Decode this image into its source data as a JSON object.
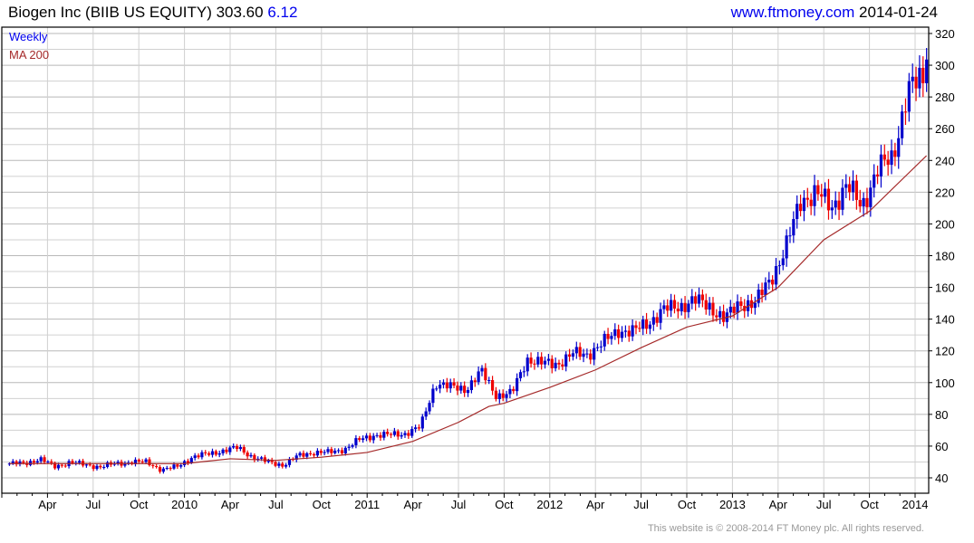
{
  "header": {
    "name": "Biogen Inc (BIIB US EQUITY)",
    "price": "303.60",
    "change": "6.12",
    "site": "www.ftmoney.com",
    "date": "2014-01-24"
  },
  "footer": "This website is © 2008-2014 FT Money plc. All rights reserved.",
  "colors": {
    "up": "#0000cc",
    "down": "#ee0000",
    "ma": "#a52a2a",
    "grid": "#d0d0d0",
    "grid_major": "#b8b8b8"
  },
  "chart_data": {
    "type": "candlestick",
    "title": "Biogen Inc (BIIB US EQUITY)",
    "frequency": "Weekly",
    "legend": [
      {
        "label": "Weekly",
        "color": "#0000ee"
      },
      {
        "label": "MA 200",
        "color": "#a52a2a"
      }
    ],
    "legend_placement": "top-left",
    "ylim": [
      35,
      322
    ],
    "yticks": [
      40,
      60,
      80,
      100,
      120,
      140,
      160,
      180,
      200,
      220,
      240,
      260,
      280,
      300,
      320
    ],
    "xticks": [
      {
        "label": "Apr",
        "t": 3
      },
      {
        "label": "Jul",
        "t": 6
      },
      {
        "label": "Oct",
        "t": 9
      },
      {
        "label": "2010",
        "t": 12
      },
      {
        "label": "Apr",
        "t": 15
      },
      {
        "label": "Jul",
        "t": 18
      },
      {
        "label": "Oct",
        "t": 21
      },
      {
        "label": "2011",
        "t": 24
      },
      {
        "label": "Apr",
        "t": 27
      },
      {
        "label": "Jul",
        "t": 30
      },
      {
        "label": "Oct",
        "t": 33
      },
      {
        "label": "2012",
        "t": 36
      },
      {
        "label": "Apr",
        "t": 39
      },
      {
        "label": "Jul",
        "t": 42
      },
      {
        "label": "Oct",
        "t": 45
      },
      {
        "label": "2013",
        "t": 48
      },
      {
        "label": "Apr",
        "t": 51
      },
      {
        "label": "Jul",
        "t": 54
      },
      {
        "label": "Oct",
        "t": 57
      },
      {
        "label": "2014",
        "t": 60
      }
    ],
    "x_unit": "months since Jan 2009",
    "monthly_close_approx": [
      49,
      49,
      52,
      47,
      50,
      48,
      47,
      49,
      50,
      50,
      45,
      47,
      53,
      55,
      57,
      59,
      53,
      50,
      48,
      54,
      56,
      56,
      58,
      64,
      67,
      67,
      68,
      72,
      100,
      97,
      96,
      107,
      92,
      93,
      115,
      112,
      112,
      118,
      118,
      125,
      133,
      132,
      138,
      146,
      148,
      152,
      148,
      140,
      150,
      150,
      165,
      185,
      215,
      220,
      210,
      225,
      210,
      235,
      240,
      285,
      290,
      303.6
    ],
    "ma200_approx": [
      {
        "t": 0.5,
        "v": 49
      },
      {
        "t": 12,
        "v": 49
      },
      {
        "t": 15,
        "v": 52
      },
      {
        "t": 18,
        "v": 51
      },
      {
        "t": 21,
        "v": 53
      },
      {
        "t": 24,
        "v": 56
      },
      {
        "t": 27,
        "v": 63
      },
      {
        "t": 30,
        "v": 75
      },
      {
        "t": 32,
        "v": 85
      },
      {
        "t": 33,
        "v": 87
      },
      {
        "t": 36,
        "v": 97
      },
      {
        "t": 39,
        "v": 108
      },
      {
        "t": 42,
        "v": 122
      },
      {
        "t": 45,
        "v": 135
      },
      {
        "t": 48,
        "v": 142
      },
      {
        "t": 51,
        "v": 160
      },
      {
        "t": 53,
        "v": 180
      },
      {
        "t": 54,
        "v": 190
      },
      {
        "t": 57,
        "v": 208
      },
      {
        "t": 60.75,
        "v": 243
      }
    ]
  }
}
